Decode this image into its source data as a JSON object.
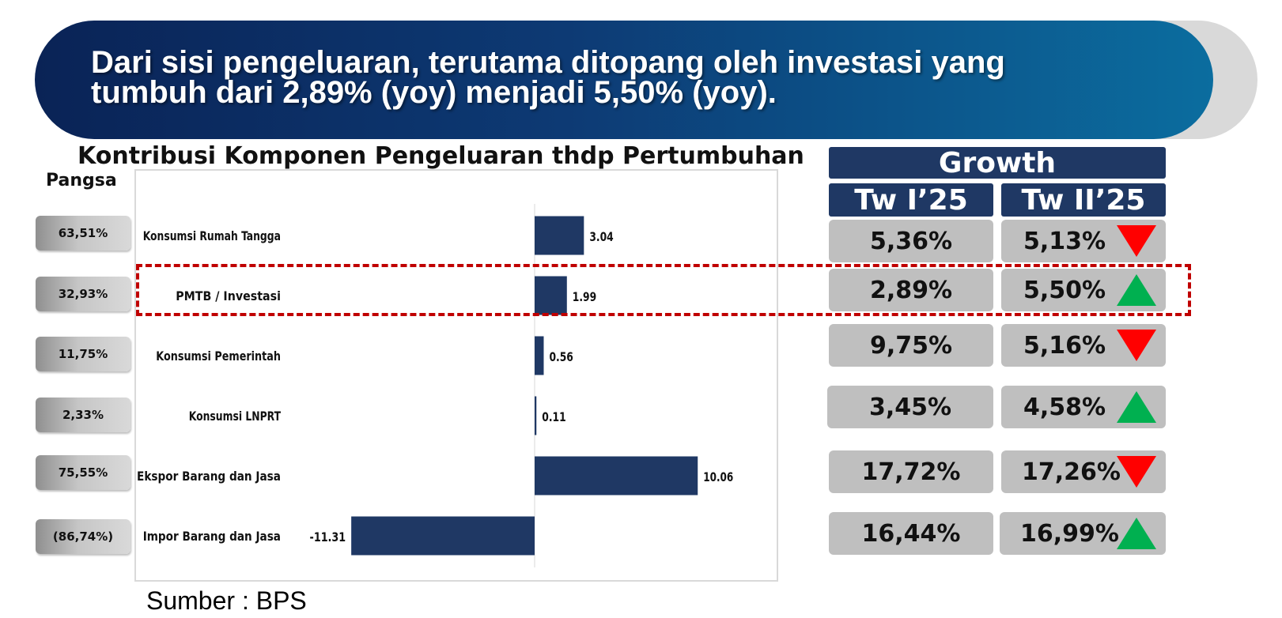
{
  "banner": {
    "line1": "Dari sisi pengeluaran, terutama ditopang oleh investasi yang",
    "line2": "tumbuh dari 2,89% (yoy) menjadi 5,50% (yoy)."
  },
  "pangsa_label": "Pangsa",
  "source": "Sumber : BPS",
  "colors": {
    "bar": "#1f3864",
    "header": "#1f3864",
    "up_arrow": "#00b050",
    "down_arrow": "#ff0000",
    "highlight": "#c00000"
  },
  "chart_data": {
    "type": "bar",
    "orientation": "horizontal",
    "title": "Kontribusi Komponen Pengeluaran thdp Pertumbuhan",
    "categories": [
      "Konsumsi Rumah Tangga",
      "PMTB / Investasi",
      "Konsumsi Pemerintah",
      "Konsumsi LNPRT",
      "Ekspor Barang dan Jasa",
      "Impor Barang dan Jasa"
    ],
    "values": [
      3.04,
      1.99,
      0.56,
      0.11,
      10.06,
      -11.31
    ],
    "value_labels": [
      "3.04",
      "1.99",
      "0.56",
      "0.11",
      "10.06",
      "-11.31"
    ],
    "xlim": [
      -14,
      14
    ],
    "grid": false,
    "highlighted_category": "PMTB / Investasi"
  },
  "pangsa": [
    "63,51%",
    "32,93%",
    "11,75%",
    "2,33%",
    "75,55%",
    "(86,74%)"
  ],
  "growth": {
    "title": "Growth",
    "col_q1": "Tw I’25",
    "col_q2": "Tw II’25",
    "rows": [
      {
        "q1": "5,36%",
        "q2": "5,13%",
        "trend": "down"
      },
      {
        "q1": "2,89%",
        "q2": "5,50%",
        "trend": "up"
      },
      {
        "q1": "9,75%",
        "q2": "5,16%",
        "trend": "down"
      },
      {
        "q1": "3,45%",
        "q2": "4,58%",
        "trend": "up"
      },
      {
        "q1": "17,72%",
        "q2": "17,26%",
        "trend": "down"
      },
      {
        "q1": "16,44%",
        "q2": "16,99%",
        "trend": "up"
      }
    ]
  }
}
